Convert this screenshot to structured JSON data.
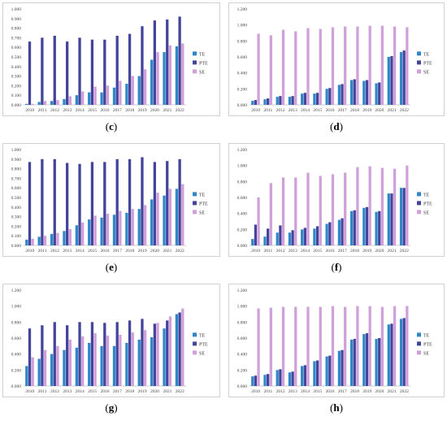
{
  "colors": {
    "TE": "#2f86c9",
    "PTE": "#43449a",
    "SE": "#cfa0d9",
    "axis": "#bfbfbf",
    "frame": "#d0d0d0"
  },
  "legend_placement": "right",
  "chart_data": [
    {
      "id": "c",
      "caption": "c",
      "type": "bar",
      "categories": [
        "2010",
        "2011",
        "2012",
        "2013",
        "2014",
        "2015",
        "2016",
        "2017",
        "2018",
        "2019",
        "2020",
        "2021",
        "2022"
      ],
      "ylim": [
        0,
        1.0
      ],
      "yticks": [
        "0.000",
        "0.100",
        "0.200",
        "0.300",
        "0.400",
        "0.500",
        "0.600",
        "0.700",
        "0.800",
        "0.900",
        "1.000"
      ],
      "series": [
        {
          "name": "TE",
          "values": [
            0.01,
            0.03,
            0.04,
            0.06,
            0.1,
            0.13,
            0.13,
            0.18,
            0.22,
            0.3,
            0.47,
            0.55,
            0.61
          ]
        },
        {
          "name": "PTE",
          "values": [
            0.66,
            0.7,
            0.72,
            0.66,
            0.7,
            0.68,
            0.68,
            0.72,
            0.74,
            0.82,
            0.88,
            0.89,
            0.92
          ]
        },
        {
          "name": "SE",
          "values": [
            0.01,
            0.04,
            0.05,
            0.09,
            0.14,
            0.19,
            0.2,
            0.25,
            0.3,
            0.37,
            0.55,
            0.62,
            0.64
          ]
        }
      ]
    },
    {
      "id": "d",
      "caption": "d",
      "type": "bar",
      "categories": [
        "2010",
        "2011",
        "2012",
        "2013",
        "2014",
        "2015",
        "2016",
        "2017",
        "2018",
        "2019",
        "2020",
        "2021",
        "2022"
      ],
      "ylim": [
        0,
        1.2
      ],
      "yticks": [
        "0.000",
        "0.200",
        "0.400",
        "0.600",
        "0.800",
        "1.000",
        "1.200"
      ],
      "series": [
        {
          "name": "TE",
          "values": [
            0.05,
            0.07,
            0.1,
            0.1,
            0.14,
            0.14,
            0.2,
            0.25,
            0.31,
            0.3,
            0.27,
            0.6,
            0.66
          ]
        },
        {
          "name": "PTE",
          "values": [
            0.06,
            0.08,
            0.11,
            0.11,
            0.15,
            0.15,
            0.21,
            0.26,
            0.32,
            0.31,
            0.28,
            0.61,
            0.68
          ]
        },
        {
          "name": "SE",
          "values": [
            0.89,
            0.87,
            0.94,
            0.92,
            0.96,
            0.95,
            0.97,
            0.98,
            0.98,
            0.99,
            0.99,
            0.98,
            0.97
          ]
        }
      ]
    },
    {
      "id": "e",
      "caption": "e",
      "type": "bar",
      "categories": [
        "2010",
        "2011",
        "2012",
        "2013",
        "2014",
        "2015",
        "2016",
        "2017",
        "2018",
        "2019",
        "2020",
        "2021",
        "2022"
      ],
      "ylim": [
        0,
        1.0
      ],
      "yticks": [
        "0.000",
        "0.100",
        "0.200",
        "0.300",
        "0.400",
        "0.500",
        "0.600",
        "0.700",
        "0.800",
        "0.900",
        "1.000"
      ],
      "series": [
        {
          "name": "TE",
          "values": [
            0.06,
            0.09,
            0.12,
            0.15,
            0.21,
            0.27,
            0.29,
            0.32,
            0.34,
            0.38,
            0.48,
            0.52,
            0.59
          ]
        },
        {
          "name": "PTE",
          "values": [
            0.87,
            0.9,
            0.9,
            0.86,
            0.85,
            0.87,
            0.87,
            0.9,
            0.9,
            0.92,
            0.87,
            0.88,
            0.9
          ]
        },
        {
          "name": "SE",
          "values": [
            0.07,
            0.1,
            0.13,
            0.17,
            0.24,
            0.31,
            0.33,
            0.36,
            0.38,
            0.42,
            0.55,
            0.59,
            0.64
          ]
        }
      ]
    },
    {
      "id": "f",
      "caption": "f",
      "type": "bar",
      "categories": [
        "2010",
        "2011",
        "2012",
        "2013",
        "2014",
        "2015",
        "2016",
        "2017",
        "2018",
        "2019",
        "2020",
        "2021",
        "2022"
      ],
      "ylim": [
        0,
        1.2
      ],
      "yticks": [
        "0.000",
        "0.200",
        "0.400",
        "0.600",
        "0.800",
        "1.000",
        "1.200"
      ],
      "series": [
        {
          "name": "TE",
          "values": [
            0.08,
            0.11,
            0.16,
            0.16,
            0.2,
            0.21,
            0.27,
            0.32,
            0.43,
            0.47,
            0.42,
            0.65,
            0.72
          ]
        },
        {
          "name": "PTE",
          "values": [
            0.26,
            0.21,
            0.25,
            0.19,
            0.22,
            0.24,
            0.29,
            0.34,
            0.44,
            0.48,
            0.43,
            0.65,
            0.72
          ]
        },
        {
          "name": "SE",
          "values": [
            0.6,
            0.78,
            0.85,
            0.85,
            0.91,
            0.87,
            0.89,
            0.91,
            0.98,
            0.99,
            0.97,
            0.96,
            1.0
          ]
        }
      ]
    },
    {
      "id": "g",
      "caption": "g",
      "type": "bar",
      "categories": [
        "2010",
        "2011",
        "2012",
        "2013",
        "2014",
        "2015",
        "2016",
        "2017",
        "2018",
        "2019",
        "2020",
        "2021",
        "2022"
      ],
      "ylim": [
        0,
        1.2
      ],
      "yticks": [
        "0.000",
        "0.200",
        "0.400",
        "0.600",
        "0.800",
        "1.000",
        "1.200"
      ],
      "series": [
        {
          "name": "TE",
          "values": [
            0.25,
            0.34,
            0.4,
            0.45,
            0.48,
            0.54,
            0.5,
            0.5,
            0.54,
            0.58,
            0.61,
            0.72,
            0.9
          ]
        },
        {
          "name": "PTE",
          "values": [
            0.72,
            0.76,
            0.8,
            0.76,
            0.8,
            0.8,
            0.79,
            0.8,
            0.82,
            0.84,
            0.78,
            0.82,
            0.92
          ]
        },
        {
          "name": "SE",
          "values": [
            0.36,
            0.45,
            0.5,
            0.58,
            0.62,
            0.66,
            0.63,
            0.64,
            0.67,
            0.7,
            0.79,
            0.87,
            0.97
          ]
        }
      ]
    },
    {
      "id": "h",
      "caption": "h",
      "type": "bar",
      "categories": [
        "2010",
        "2011",
        "2012",
        "2013",
        "2014",
        "2015",
        "2016",
        "2017",
        "2018",
        "2019",
        "2020",
        "2021",
        "2022"
      ],
      "ylim": [
        0,
        1.2
      ],
      "yticks": [
        "0.000",
        "0.200",
        "0.400",
        "0.600",
        "0.800",
        "1.000",
        "1.200"
      ],
      "series": [
        {
          "name": "TE",
          "values": [
            0.12,
            0.14,
            0.2,
            0.17,
            0.25,
            0.31,
            0.37,
            0.44,
            0.58,
            0.65,
            0.59,
            0.77,
            0.84
          ]
        },
        {
          "name": "PTE",
          "values": [
            0.13,
            0.15,
            0.21,
            0.18,
            0.26,
            0.32,
            0.38,
            0.45,
            0.59,
            0.66,
            0.6,
            0.78,
            0.85
          ]
        },
        {
          "name": "SE",
          "values": [
            0.97,
            0.98,
            0.99,
            0.99,
            0.99,
            0.99,
            1.0,
            0.99,
            1.0,
            1.0,
            0.99,
            1.0,
            1.0
          ]
        }
      ]
    }
  ]
}
